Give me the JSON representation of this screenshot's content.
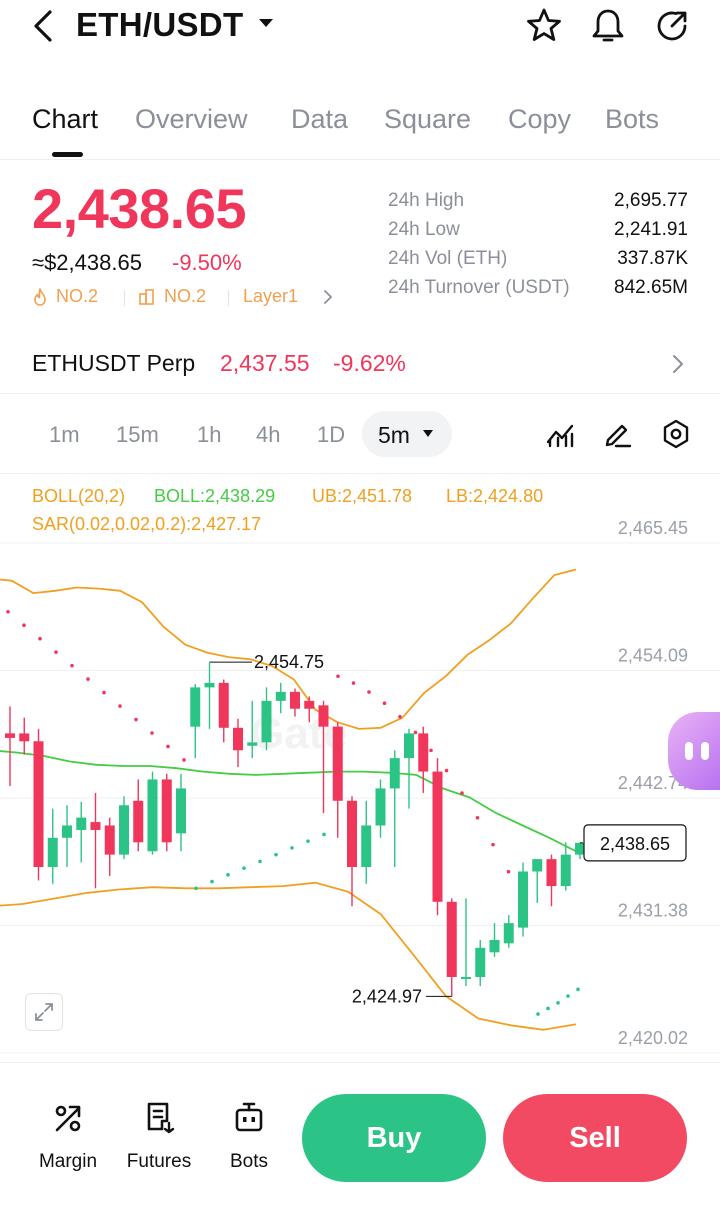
{
  "header": {
    "pair": "ETH/USDT",
    "icons": [
      "back-icon",
      "caret-down-icon",
      "star-icon",
      "bell-icon",
      "share-icon"
    ]
  },
  "tabs": [
    {
      "label": "Chart",
      "active": true
    },
    {
      "label": "Overview",
      "active": false
    },
    {
      "label": "Data",
      "active": false
    },
    {
      "label": "Square",
      "active": false
    },
    {
      "label": "Copy",
      "active": false
    },
    {
      "label": "Bots",
      "active": false
    }
  ],
  "ticker": {
    "last_price": "2,438.65",
    "fiat_price": "≈$2,438.65",
    "change_pct": "-9.50%",
    "badges": [
      "NO.2",
      "NO.2",
      "Layer1"
    ],
    "badge_icons": [
      "fire-icon",
      "category-icon",
      "chevron-right-icon"
    ]
  },
  "stats": [
    {
      "label": "24h  High",
      "value": "2,695.77"
    },
    {
      "label": "24h  Low",
      "value": "2,241.91"
    },
    {
      "label": "24h  Vol (ETH)",
      "value": "337.87K"
    },
    {
      "label": "24h  Turnover (USDT)",
      "value": "842.65M"
    }
  ],
  "perp": {
    "name": "ETHUSDT Perp",
    "price": "2,437.55",
    "change_pct": "-9.62%"
  },
  "intervals": {
    "options": [
      "1m",
      "15m",
      "1h",
      "4h",
      "1D"
    ],
    "selected": "5m",
    "tools": [
      "indicator-icon",
      "draw-icon",
      "settings-icon"
    ]
  },
  "indicators": {
    "boll": "BOLL(20,2)",
    "boll_mid": "BOLL:2,438.29",
    "boll_ub": "UB:2,451.78",
    "boll_lb": "LB:2,424.80",
    "sar": "SAR(0.02,0.02,0.2):2,427.17"
  },
  "colors": {
    "up": "#2bc486",
    "down": "#f0365a",
    "boll_band": "#f0a020",
    "boll_mid": "#44cc44",
    "sar_above": "#f0365a",
    "sar_below": "#2bc486",
    "watermark": "#f2f2f2"
  },
  "chart_data": {
    "type": "candlestick",
    "interval": "5m",
    "price_axis": {
      "ticks": [
        "2,465.45",
        "2,454.09",
        "2,442.74",
        "2,431.38",
        "2,420.02"
      ],
      "range": [
        2420.02,
        2465.45
      ]
    },
    "current_price_tag": "2,438.65",
    "high_marker": "2,454.75",
    "low_marker": "2,424.97",
    "watermark": "Gate",
    "candles": [
      {
        "o": 2448.4,
        "h": 2450.8,
        "l": 2443.7,
        "c": 2448.0
      },
      {
        "o": 2448.4,
        "h": 2449.8,
        "l": 2446.5,
        "c": 2447.7
      },
      {
        "o": 2447.7,
        "h": 2448.8,
        "l": 2435.3,
        "c": 2436.5
      },
      {
        "o": 2436.5,
        "h": 2441.7,
        "l": 2435.0,
        "c": 2439.1
      },
      {
        "o": 2439.1,
        "h": 2442.0,
        "l": 2436.5,
        "c": 2440.2
      },
      {
        "o": 2439.8,
        "h": 2442.3,
        "l": 2436.9,
        "c": 2440.9
      },
      {
        "o": 2440.5,
        "h": 2443.1,
        "l": 2434.6,
        "c": 2439.8
      },
      {
        "o": 2440.2,
        "h": 2440.9,
        "l": 2435.7,
        "c": 2437.6
      },
      {
        "o": 2437.6,
        "h": 2442.8,
        "l": 2437.2,
        "c": 2442.0
      },
      {
        "o": 2442.4,
        "h": 2444.3,
        "l": 2437.9,
        "c": 2438.7
      },
      {
        "o": 2437.9,
        "h": 2445.0,
        "l": 2437.6,
        "c": 2444.3
      },
      {
        "o": 2444.3,
        "h": 2444.8,
        "l": 2437.9,
        "c": 2438.7
      },
      {
        "o": 2439.5,
        "h": 2444.8,
        "l": 2437.9,
        "c": 2443.5
      },
      {
        "o": 2449.0,
        "h": 2452.8,
        "l": 2446.2,
        "c": 2452.5
      },
      {
        "o": 2452.5,
        "h": 2454.7,
        "l": 2448.8,
        "c": 2452.9
      },
      {
        "o": 2452.9,
        "h": 2453.2,
        "l": 2447.6,
        "c": 2448.9
      },
      {
        "o": 2448.9,
        "h": 2449.7,
        "l": 2445.4,
        "c": 2446.9
      },
      {
        "o": 2447.3,
        "h": 2451.3,
        "l": 2446.2,
        "c": 2447.6
      },
      {
        "o": 2447.6,
        "h": 2452.5,
        "l": 2446.9,
        "c": 2451.3
      },
      {
        "o": 2451.3,
        "h": 2452.9,
        "l": 2450.2,
        "c": 2452.1
      },
      {
        "o": 2452.1,
        "h": 2452.4,
        "l": 2449.9,
        "c": 2450.6
      },
      {
        "o": 2451.3,
        "h": 2451.7,
        "l": 2449.4,
        "c": 2450.6
      },
      {
        "o": 2450.9,
        "h": 2451.3,
        "l": 2441.3,
        "c": 2449.0
      },
      {
        "o": 2449.0,
        "h": 2449.4,
        "l": 2439.1,
        "c": 2442.4
      },
      {
        "o": 2442.4,
        "h": 2442.8,
        "l": 2433.0,
        "c": 2436.5
      },
      {
        "o": 2436.5,
        "h": 2442.4,
        "l": 2435.0,
        "c": 2440.2
      },
      {
        "o": 2440.2,
        "h": 2444.3,
        "l": 2439.1,
        "c": 2443.5
      },
      {
        "o": 2443.5,
        "h": 2446.9,
        "l": 2436.5,
        "c": 2446.2
      },
      {
        "o": 2446.2,
        "h": 2448.8,
        "l": 2441.7,
        "c": 2448.4
      },
      {
        "o": 2448.4,
        "h": 2449.0,
        "l": 2443.1,
        "c": 2445.0
      },
      {
        "o": 2445.0,
        "h": 2446.2,
        "l": 2432.2,
        "c": 2433.4
      },
      {
        "o": 2433.4,
        "h": 2433.7,
        "l": 2424.97,
        "c": 2426.7
      },
      {
        "o": 2426.7,
        "h": 2433.7,
        "l": 2425.9,
        "c": 2426.7
      },
      {
        "o": 2426.7,
        "h": 2430.0,
        "l": 2425.9,
        "c": 2429.3
      },
      {
        "o": 2428.9,
        "h": 2431.5,
        "l": 2428.5,
        "c": 2430.0
      },
      {
        "o": 2429.7,
        "h": 2432.2,
        "l": 2429.3,
        "c": 2431.5
      },
      {
        "o": 2431.1,
        "h": 2436.9,
        "l": 2430.3,
        "c": 2436.1
      },
      {
        "o": 2436.1,
        "h": 2437.2,
        "l": 2433.3,
        "c": 2437.2
      },
      {
        "o": 2437.2,
        "h": 2437.6,
        "l": 2433.0,
        "c": 2434.8
      },
      {
        "o": 2434.8,
        "h": 2438.7,
        "l": 2434.4,
        "c": 2437.6
      },
      {
        "o": 2437.6,
        "h": 2438.7,
        "l": 2437.2,
        "c": 2438.65
      }
    ],
    "boll_upper": [
      2462.2,
      2462.0,
      2460.9,
      2461.1,
      2461.4,
      2461.3,
      2461.1,
      2460.1,
      2457.9,
      2456.3,
      2455.6,
      2455.2,
      2455.0,
      2454.4,
      2453.2,
      2450.5,
      2449.4,
      2448.8,
      2448.9,
      2449.8,
      2452.0,
      2453.5,
      2455.4,
      2456.7,
      2458.2,
      2460.4,
      2462.5,
      2463.0,
      2462.2,
      2461.6,
      2460.9,
      2458.8,
      2456.8
    ],
    "boll_upper_x": [
      0,
      22,
      40,
      58,
      80,
      100,
      120,
      140,
      160,
      180,
      200,
      225,
      250,
      280,
      300,
      330,
      360,
      390,
      420,
      440,
      455,
      470,
      490,
      510,
      530,
      550,
      565,
      580,
      0,
      0,
      0,
      0,
      0
    ],
    "boll_mid": [
      2446.9,
      2446.7,
      2446.4,
      2445.9,
      2445.6,
      2445.5,
      2445.5,
      2445.3,
      2445.0,
      2444.8,
      2444.7,
      2444.8,
      2444.9,
      2445.0,
      2445.0,
      2444.9,
      2444.7,
      2443.5,
      2442.7,
      2441.3,
      2440.2,
      2439.1,
      2437.9
    ],
    "boll_lower": [
      2433.0,
      2433.2,
      2433.7,
      2434.2,
      2434.5,
      2434.7,
      2434.6,
      2434.6,
      2434.7,
      2434.8,
      2435.1,
      2434.3,
      2432.3,
      2428.7,
      2425.0,
      2423.0,
      2422.4,
      2422.0,
      2422.5
    ]
  },
  "bottom_nav": [
    {
      "label": "Margin",
      "icon": "margin-icon"
    },
    {
      "label": "Futures",
      "icon": "futures-icon"
    },
    {
      "label": "Bots",
      "icon": "bots-icon"
    }
  ],
  "actions": {
    "buy": "Buy",
    "sell": "Sell"
  }
}
